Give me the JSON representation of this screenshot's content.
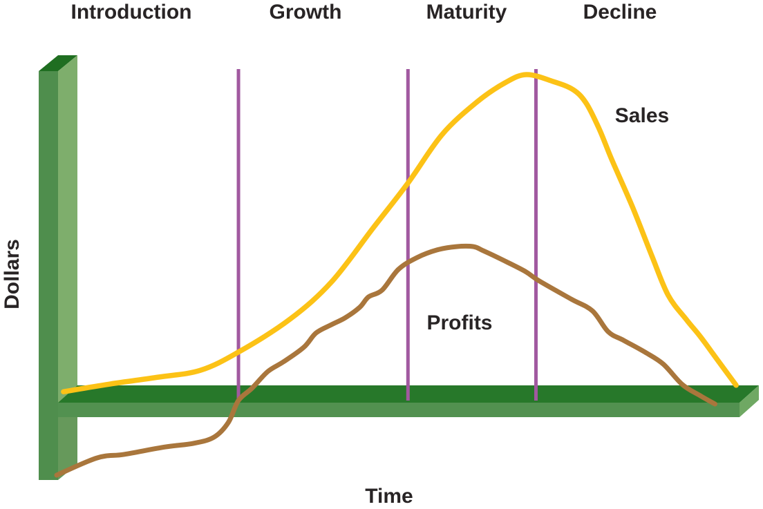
{
  "colors": {
    "text": "#282425",
    "divider": "#A159A0",
    "sales": "#FCC216",
    "profits": "#A9763C",
    "ybar_top": "#1F6E21",
    "ybar_side": "#7EAE6C",
    "ybar_front": "#4F8E4D",
    "xbar_top": "#27782A",
    "xbar_front": "#529150",
    "xbar_end": "#6FA863",
    "junction_shadow": "#14501E"
  },
  "labels": {
    "y_axis": "Dollars",
    "x_axis": "Time"
  },
  "chart_data": {
    "type": "line",
    "xlabel": "Time",
    "ylabel": "Dollars",
    "phases": [
      "Introduction",
      "Growth",
      "Maturity",
      "Decline"
    ],
    "phase_dividers_t": [
      26.4,
      51.3,
      70.1
    ],
    "x_range": [
      0,
      100
    ],
    "y_range": [
      -30,
      105
    ],
    "legend_position": "inline-annotations",
    "grid": false,
    "series": [
      {
        "name": "Sales",
        "color": "#FCC216",
        "points": [
          [
            0.7,
            0.6
          ],
          [
            7.6,
            3.0
          ],
          [
            14.7,
            5.1
          ],
          [
            20.8,
            7.2
          ],
          [
            26.4,
            12.8
          ],
          [
            34.0,
            23.0
          ],
          [
            40.1,
            34.5
          ],
          [
            46.2,
            51.1
          ],
          [
            51.3,
            64.9
          ],
          [
            56.3,
            79.8
          ],
          [
            61.4,
            89.8
          ],
          [
            65.5,
            95.7
          ],
          [
            68.7,
            98.3
          ],
          [
            72.6,
            96.2
          ],
          [
            75.6,
            93.6
          ],
          [
            77.5,
            89.4
          ],
          [
            79.4,
            81.5
          ],
          [
            81.2,
            72.3
          ],
          [
            84.3,
            57.4
          ],
          [
            87.1,
            42.6
          ],
          [
            89.5,
            30.4
          ],
          [
            92.2,
            22.8
          ],
          [
            94.2,
            17.7
          ],
          [
            96.9,
            10.0
          ],
          [
            99.5,
            2.6
          ]
        ]
      },
      {
        "name": "Profits",
        "color": "#A9763C",
        "points": [
          [
            -0.3,
            -25.1
          ],
          [
            5.6,
            -19.8
          ],
          [
            9.6,
            -18.7
          ],
          [
            15.7,
            -16.4
          ],
          [
            19.8,
            -15.3
          ],
          [
            22.8,
            -13.4
          ],
          [
            24.9,
            -8.9
          ],
          [
            26.4,
            -2.1
          ],
          [
            28.4,
            1.7
          ],
          [
            30.7,
            6.8
          ],
          [
            33.0,
            9.8
          ],
          [
            36.0,
            14.3
          ],
          [
            37.8,
            18.7
          ],
          [
            40.1,
            21.3
          ],
          [
            42.1,
            23.4
          ],
          [
            44.2,
            26.6
          ],
          [
            45.5,
            29.8
          ],
          [
            47.5,
            31.9
          ],
          [
            49.9,
            38.3
          ],
          [
            52.6,
            41.9
          ],
          [
            55.6,
            44.3
          ],
          [
            58.4,
            45.3
          ],
          [
            60.9,
            45.3
          ],
          [
            62.4,
            44.0
          ],
          [
            65.5,
            40.9
          ],
          [
            68.5,
            37.7
          ],
          [
            70.6,
            34.7
          ],
          [
            75.3,
            29.1
          ],
          [
            78.4,
            25.5
          ],
          [
            80.7,
            19.1
          ],
          [
            83.0,
            16.4
          ],
          [
            86.1,
            12.8
          ],
          [
            88.8,
            9.1
          ],
          [
            91.6,
            2.8
          ],
          [
            94.2,
            -0.6
          ],
          [
            96.4,
            -3.2
          ]
        ]
      }
    ]
  }
}
